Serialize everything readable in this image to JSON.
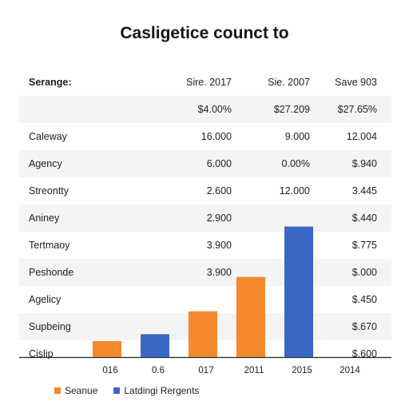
{
  "chart_data": {
    "type": "bar",
    "title": "Casligetice counct to",
    "table": {
      "header": [
        "Serange:",
        "Sire. 2017",
        "Sie. 2007",
        "Save 903"
      ],
      "rows": [
        [
          "",
          "$4.00%",
          "$27.209",
          "$27.65%"
        ],
        [
          "Caleway",
          "16.000",
          "9.000",
          "12.004"
        ],
        [
          "Agency",
          "6.000",
          "0.00%",
          "$.940"
        ],
        [
          "Streontty",
          "2.600",
          "12.000",
          "3.445"
        ],
        [
          "Aniney",
          "2.900",
          "",
          "$.440"
        ],
        [
          "Tertmaoy",
          "3.900",
          "",
          "$.775"
        ],
        [
          "Peshonde",
          "3.900",
          "",
          "$.000"
        ],
        [
          "Agelicy",
          "",
          "",
          "$.450"
        ],
        [
          "Supbeing",
          "",
          "",
          "$.670"
        ],
        [
          "Cislip",
          "",
          "",
          "$.600"
        ]
      ]
    },
    "categories": [
      "016",
      "0.6",
      "017",
      "2011",
      "2015",
      "2014"
    ],
    "series": [
      {
        "name": "Seanue",
        "color": "#f4882e"
      },
      {
        "name": "Latdingi Rergents",
        "color": "#3a66c4"
      }
    ],
    "bars": [
      {
        "category": "016",
        "value": 7,
        "series": 0
      },
      {
        "category": "0.6",
        "value": 10,
        "series": 1
      },
      {
        "category": "017",
        "value": 20,
        "series": 0
      },
      {
        "category": "2011",
        "value": 35,
        "series": 0
      },
      {
        "category": "2015",
        "value": 57,
        "series": 1
      }
    ],
    "ylim": [
      0,
      60
    ],
    "legend": "bottom-left"
  }
}
